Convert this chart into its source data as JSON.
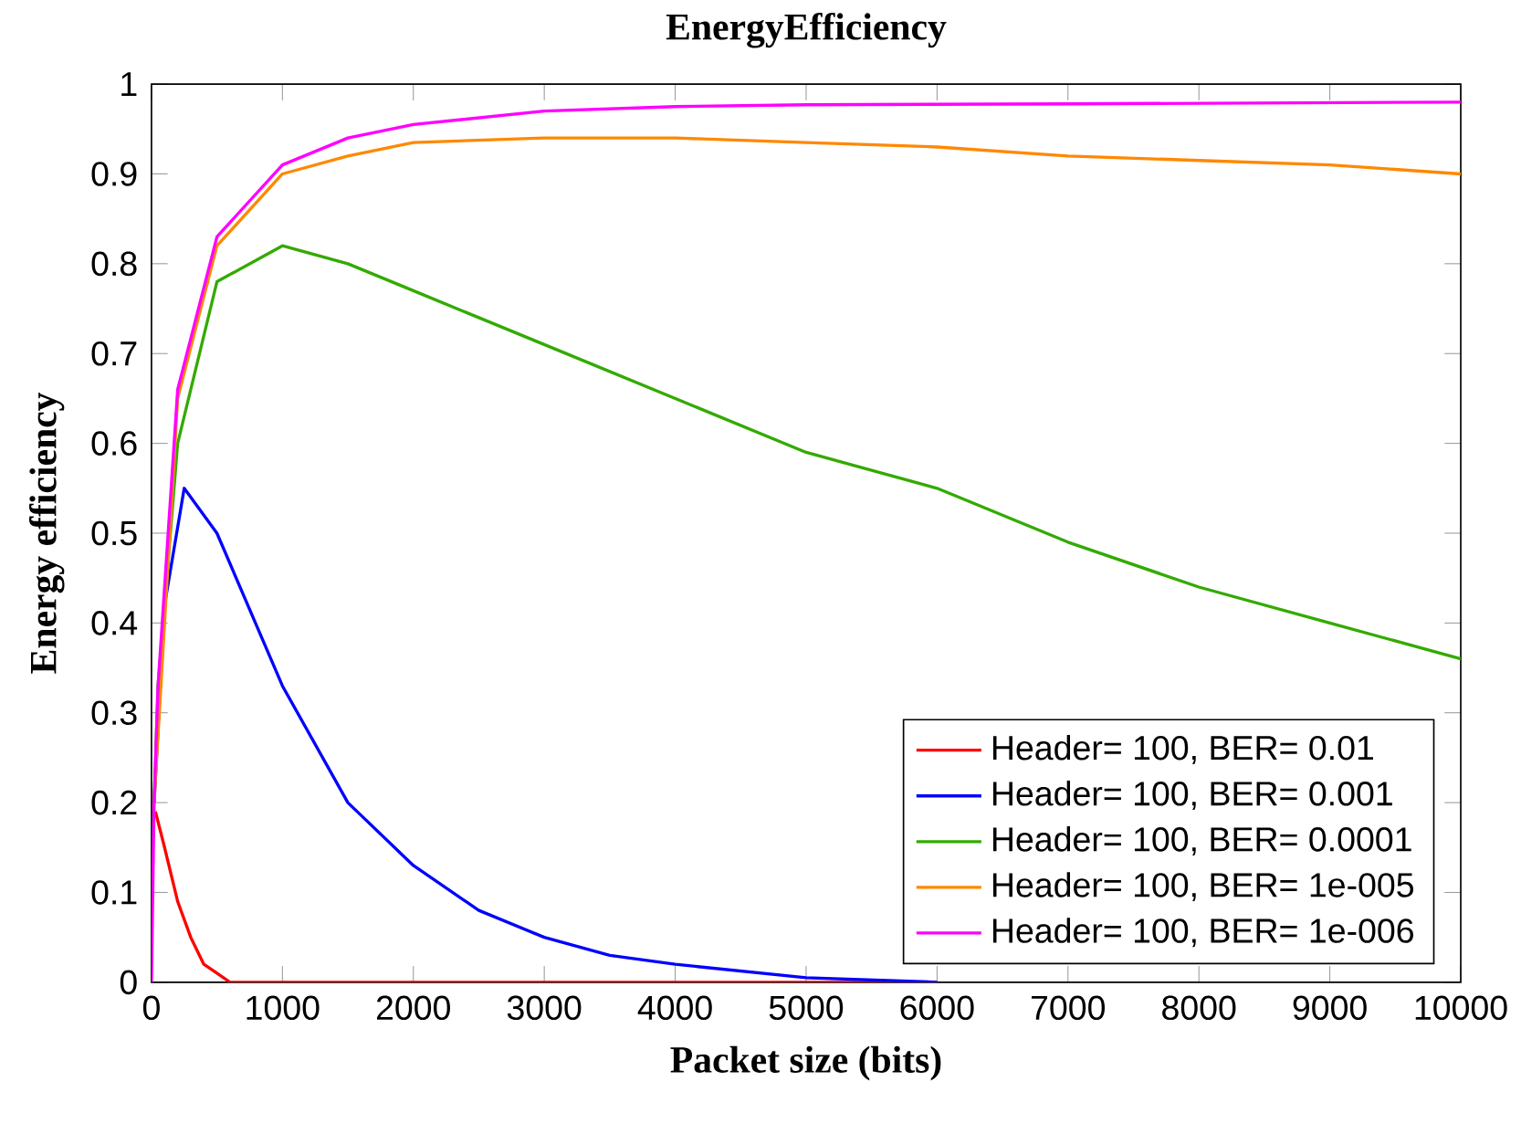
{
  "chart_data": {
    "type": "line",
    "title": "EnergyEfficiency",
    "xlabel": "Packet size (bits)",
    "ylabel": "Energy efficiency",
    "xlim": [
      0,
      10000
    ],
    "xticks": [
      0,
      1000,
      2000,
      3000,
      4000,
      5000,
      6000,
      7000,
      8000,
      9000,
      10000
    ],
    "ylim": [
      0,
      1
    ],
    "yticks": [
      0,
      0.1,
      0.2,
      0.3,
      0.4,
      0.5,
      0.6,
      0.7,
      0.8,
      0.9,
      1
    ],
    "grid": false,
    "legend": "bottom right",
    "marker": "none",
    "line_style": "solid",
    "series": [
      {
        "name": "Header= 100, BER= 0.01",
        "color": "#ff0000",
        "x": [
          30,
          100,
          200,
          300,
          400,
          500,
          600,
          1000,
          2000,
          3000,
          4000,
          5000,
          6000
        ],
        "values": [
          0.19,
          0.15,
          0.09,
          0.05,
          0.02,
          0.01,
          0,
          0,
          0,
          0,
          0,
          0,
          0
        ]
      },
      {
        "name": "Header= 100, BER= 0.001",
        "color": "#0000ff",
        "x": [
          20,
          100,
          250,
          500,
          1000,
          1500,
          2000,
          2500,
          3000,
          3500,
          4000,
          5000,
          6000
        ],
        "values": [
          0.2,
          0.42,
          0.55,
          0.5,
          0.33,
          0.2,
          0.13,
          0.08,
          0.05,
          0.03,
          0.02,
          0.005,
          0
        ]
      },
      {
        "name": "Header= 100, BER= 0.0001",
        "color": "#33aa00",
        "x": [
          20,
          50,
          200,
          500,
          1000,
          1500,
          2000,
          3000,
          4000,
          5000,
          6000,
          7000,
          8000,
          9000,
          10000
        ],
        "values": [
          0.2,
          0.33,
          0.6,
          0.78,
          0.82,
          0.8,
          0.77,
          0.71,
          0.65,
          0.59,
          0.55,
          0.49,
          0.44,
          0.4,
          0.36
        ]
      },
      {
        "name": "Header= 100, BER= 1e-005",
        "color": "#ff8800",
        "x": [
          20,
          50,
          200,
          500,
          1000,
          1500,
          2000,
          3000,
          4000,
          5000,
          6000,
          7000,
          8000,
          9000,
          10000
        ],
        "values": [
          0.2,
          null,
          0.65,
          0.82,
          0.9,
          0.92,
          0.935,
          0.94,
          0.94,
          0.935,
          0.93,
          0.92,
          0.915,
          0.91,
          0.9
        ]
      },
      {
        "name": "Header= 100, BER= 1e-006",
        "color": "#ff00ff",
        "x": [
          0,
          20,
          50,
          200,
          500,
          1000,
          1500,
          2000,
          3000,
          4000,
          5000,
          7000,
          10000
        ],
        "values": [
          0,
          0.2,
          0.33,
          0.66,
          0.83,
          0.91,
          0.94,
          0.955,
          0.97,
          0.975,
          0.977,
          0.978,
          0.98
        ]
      }
    ]
  }
}
